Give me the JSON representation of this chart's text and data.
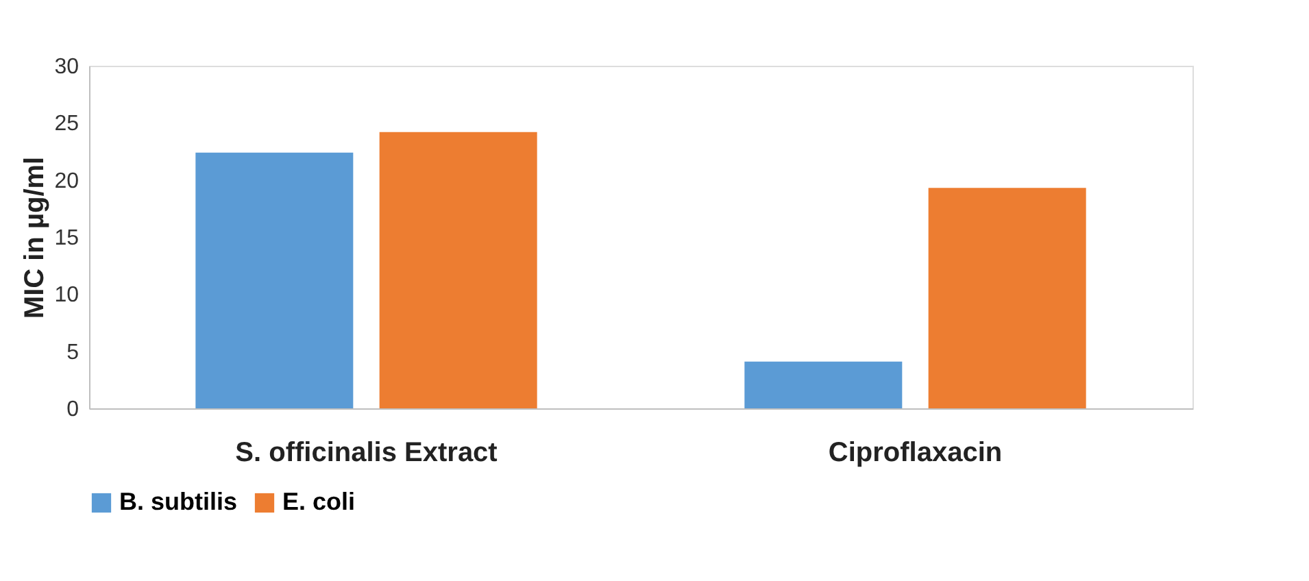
{
  "chart_data": {
    "type": "bar",
    "ylabel": "MIC in µg/ml",
    "categories": [
      "S. officinalis Extract",
      "Ciproflaxacin"
    ],
    "series": [
      {
        "name": "B. subtilis",
        "color": "#5b9bd5",
        "values": [
          22.4,
          4.1
        ]
      },
      {
        "name": "E. coli",
        "color": "#ed7d31",
        "values": [
          24.2,
          19.3
        ]
      }
    ],
    "ylim": [
      0,
      30
    ],
    "yticks": [
      0,
      5,
      10,
      15,
      20,
      25,
      30
    ],
    "grid": false,
    "legend": "bottom"
  }
}
